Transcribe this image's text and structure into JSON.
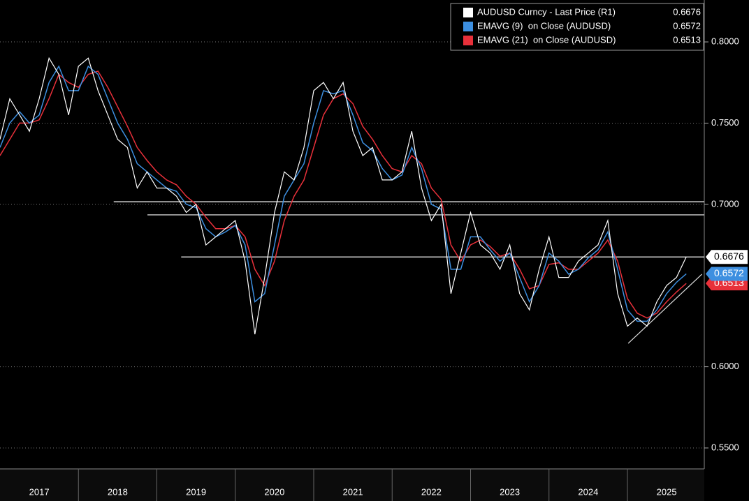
{
  "chart_data": {
    "type": "line",
    "x": [
      2017,
      2017.125,
      2017.25,
      2017.375,
      2017.5,
      2017.625,
      2017.75,
      2017.875,
      2018,
      2018.125,
      2018.25,
      2018.375,
      2018.5,
      2018.625,
      2018.75,
      2018.875,
      2019,
      2019.125,
      2019.25,
      2019.375,
      2019.5,
      2019.625,
      2019.75,
      2019.875,
      2020,
      2020.125,
      2020.25,
      2020.375,
      2020.5,
      2020.625,
      2020.75,
      2020.875,
      2021,
      2021.125,
      2021.25,
      2021.375,
      2021.5,
      2021.625,
      2021.75,
      2021.875,
      2022,
      2022.125,
      2022.25,
      2022.375,
      2022.5,
      2022.625,
      2022.75,
      2022.875,
      2023,
      2023.125,
      2023.25,
      2023.375,
      2023.5,
      2023.625,
      2023.75,
      2023.875,
      2024,
      2024.125,
      2024.25,
      2024.375,
      2024.5,
      2024.625,
      2024.75,
      2024.875,
      2025,
      2025.125,
      2025.25,
      2025.375,
      2025.5,
      2025.625,
      2025.75
    ],
    "series": [
      {
        "name": "AUDUSD Curncy - Last Price (R1)",
        "color": "#ffffff",
        "values": [
          0.74,
          0.765,
          0.755,
          0.745,
          0.765,
          0.79,
          0.78,
          0.755,
          0.785,
          0.79,
          0.77,
          0.755,
          0.74,
          0.735,
          0.71,
          0.72,
          0.71,
          0.71,
          0.705,
          0.695,
          0.7,
          0.675,
          0.68,
          0.685,
          0.69,
          0.665,
          0.62,
          0.655,
          0.695,
          0.72,
          0.715,
          0.735,
          0.77,
          0.775,
          0.765,
          0.775,
          0.745,
          0.73,
          0.735,
          0.715,
          0.715,
          0.72,
          0.745,
          0.71,
          0.69,
          0.7,
          0.645,
          0.67,
          0.695,
          0.675,
          0.67,
          0.66,
          0.675,
          0.645,
          0.635,
          0.66,
          0.68,
          0.655,
          0.655,
          0.665,
          0.67,
          0.675,
          0.69,
          0.645,
          0.625,
          0.63,
          0.625,
          0.64,
          0.65,
          0.655,
          0.6676
        ]
      },
      {
        "name": "EMAVG (9)  on Close (AUDUSD)",
        "color": "#3d8fe0",
        "values": [
          0.735,
          0.75,
          0.757,
          0.75,
          0.755,
          0.775,
          0.785,
          0.77,
          0.77,
          0.785,
          0.78,
          0.765,
          0.75,
          0.74,
          0.725,
          0.72,
          0.715,
          0.71,
          0.708,
          0.7,
          0.698,
          0.685,
          0.68,
          0.683,
          0.687,
          0.675,
          0.64,
          0.645,
          0.675,
          0.705,
          0.715,
          0.725,
          0.75,
          0.77,
          0.768,
          0.77,
          0.755,
          0.738,
          0.733,
          0.722,
          0.715,
          0.718,
          0.735,
          0.722,
          0.7,
          0.697,
          0.66,
          0.66,
          0.68,
          0.68,
          0.672,
          0.665,
          0.67,
          0.655,
          0.64,
          0.65,
          0.67,
          0.665,
          0.657,
          0.66,
          0.667,
          0.672,
          0.683,
          0.66,
          0.635,
          0.628,
          0.628,
          0.635,
          0.645,
          0.652,
          0.6572
        ]
      },
      {
        "name": "EMAVG (21)  on Close (AUDUSD)",
        "color": "#e8303a",
        "values": [
          0.73,
          0.74,
          0.75,
          0.75,
          0.752,
          0.765,
          0.78,
          0.775,
          0.772,
          0.78,
          0.782,
          0.772,
          0.76,
          0.748,
          0.735,
          0.727,
          0.72,
          0.715,
          0.712,
          0.705,
          0.7,
          0.692,
          0.685,
          0.685,
          0.687,
          0.68,
          0.66,
          0.65,
          0.665,
          0.69,
          0.705,
          0.715,
          0.735,
          0.755,
          0.765,
          0.768,
          0.762,
          0.748,
          0.74,
          0.73,
          0.722,
          0.72,
          0.73,
          0.725,
          0.71,
          0.703,
          0.675,
          0.665,
          0.675,
          0.678,
          0.674,
          0.668,
          0.67,
          0.66,
          0.648,
          0.65,
          0.663,
          0.664,
          0.66,
          0.66,
          0.665,
          0.67,
          0.678,
          0.665,
          0.642,
          0.633,
          0.63,
          0.633,
          0.64,
          0.646,
          0.6513
        ]
      }
    ],
    "hlines": [
      {
        "value": 0.7016,
        "x0": 2018.45
      },
      {
        "value": 0.6935,
        "x0": 2018.88
      },
      {
        "value": 0.6676,
        "x0": 2019.31
      }
    ],
    "trendline": {
      "x": [
        2025.01,
        2025.95
      ],
      "y": [
        0.6144,
        0.657
      ]
    },
    "xlim": [
      2017,
      2025.98
    ],
    "ylim": [
      0.5371,
      0.8258
    ],
    "xticks": [
      2017,
      2018,
      2019,
      2020,
      2021,
      2022,
      2023,
      2024,
      2025
    ],
    "yticks": [
      {
        "value": 0.55,
        "label": "0.5500"
      },
      {
        "value": 0.6,
        "label": "0.6000"
      },
      {
        "value": 0.7,
        "label": "0.7000"
      },
      {
        "value": 0.75,
        "label": "0.7500"
      },
      {
        "value": 0.8,
        "label": "0.8000"
      }
    ],
    "grid": true
  }
}
